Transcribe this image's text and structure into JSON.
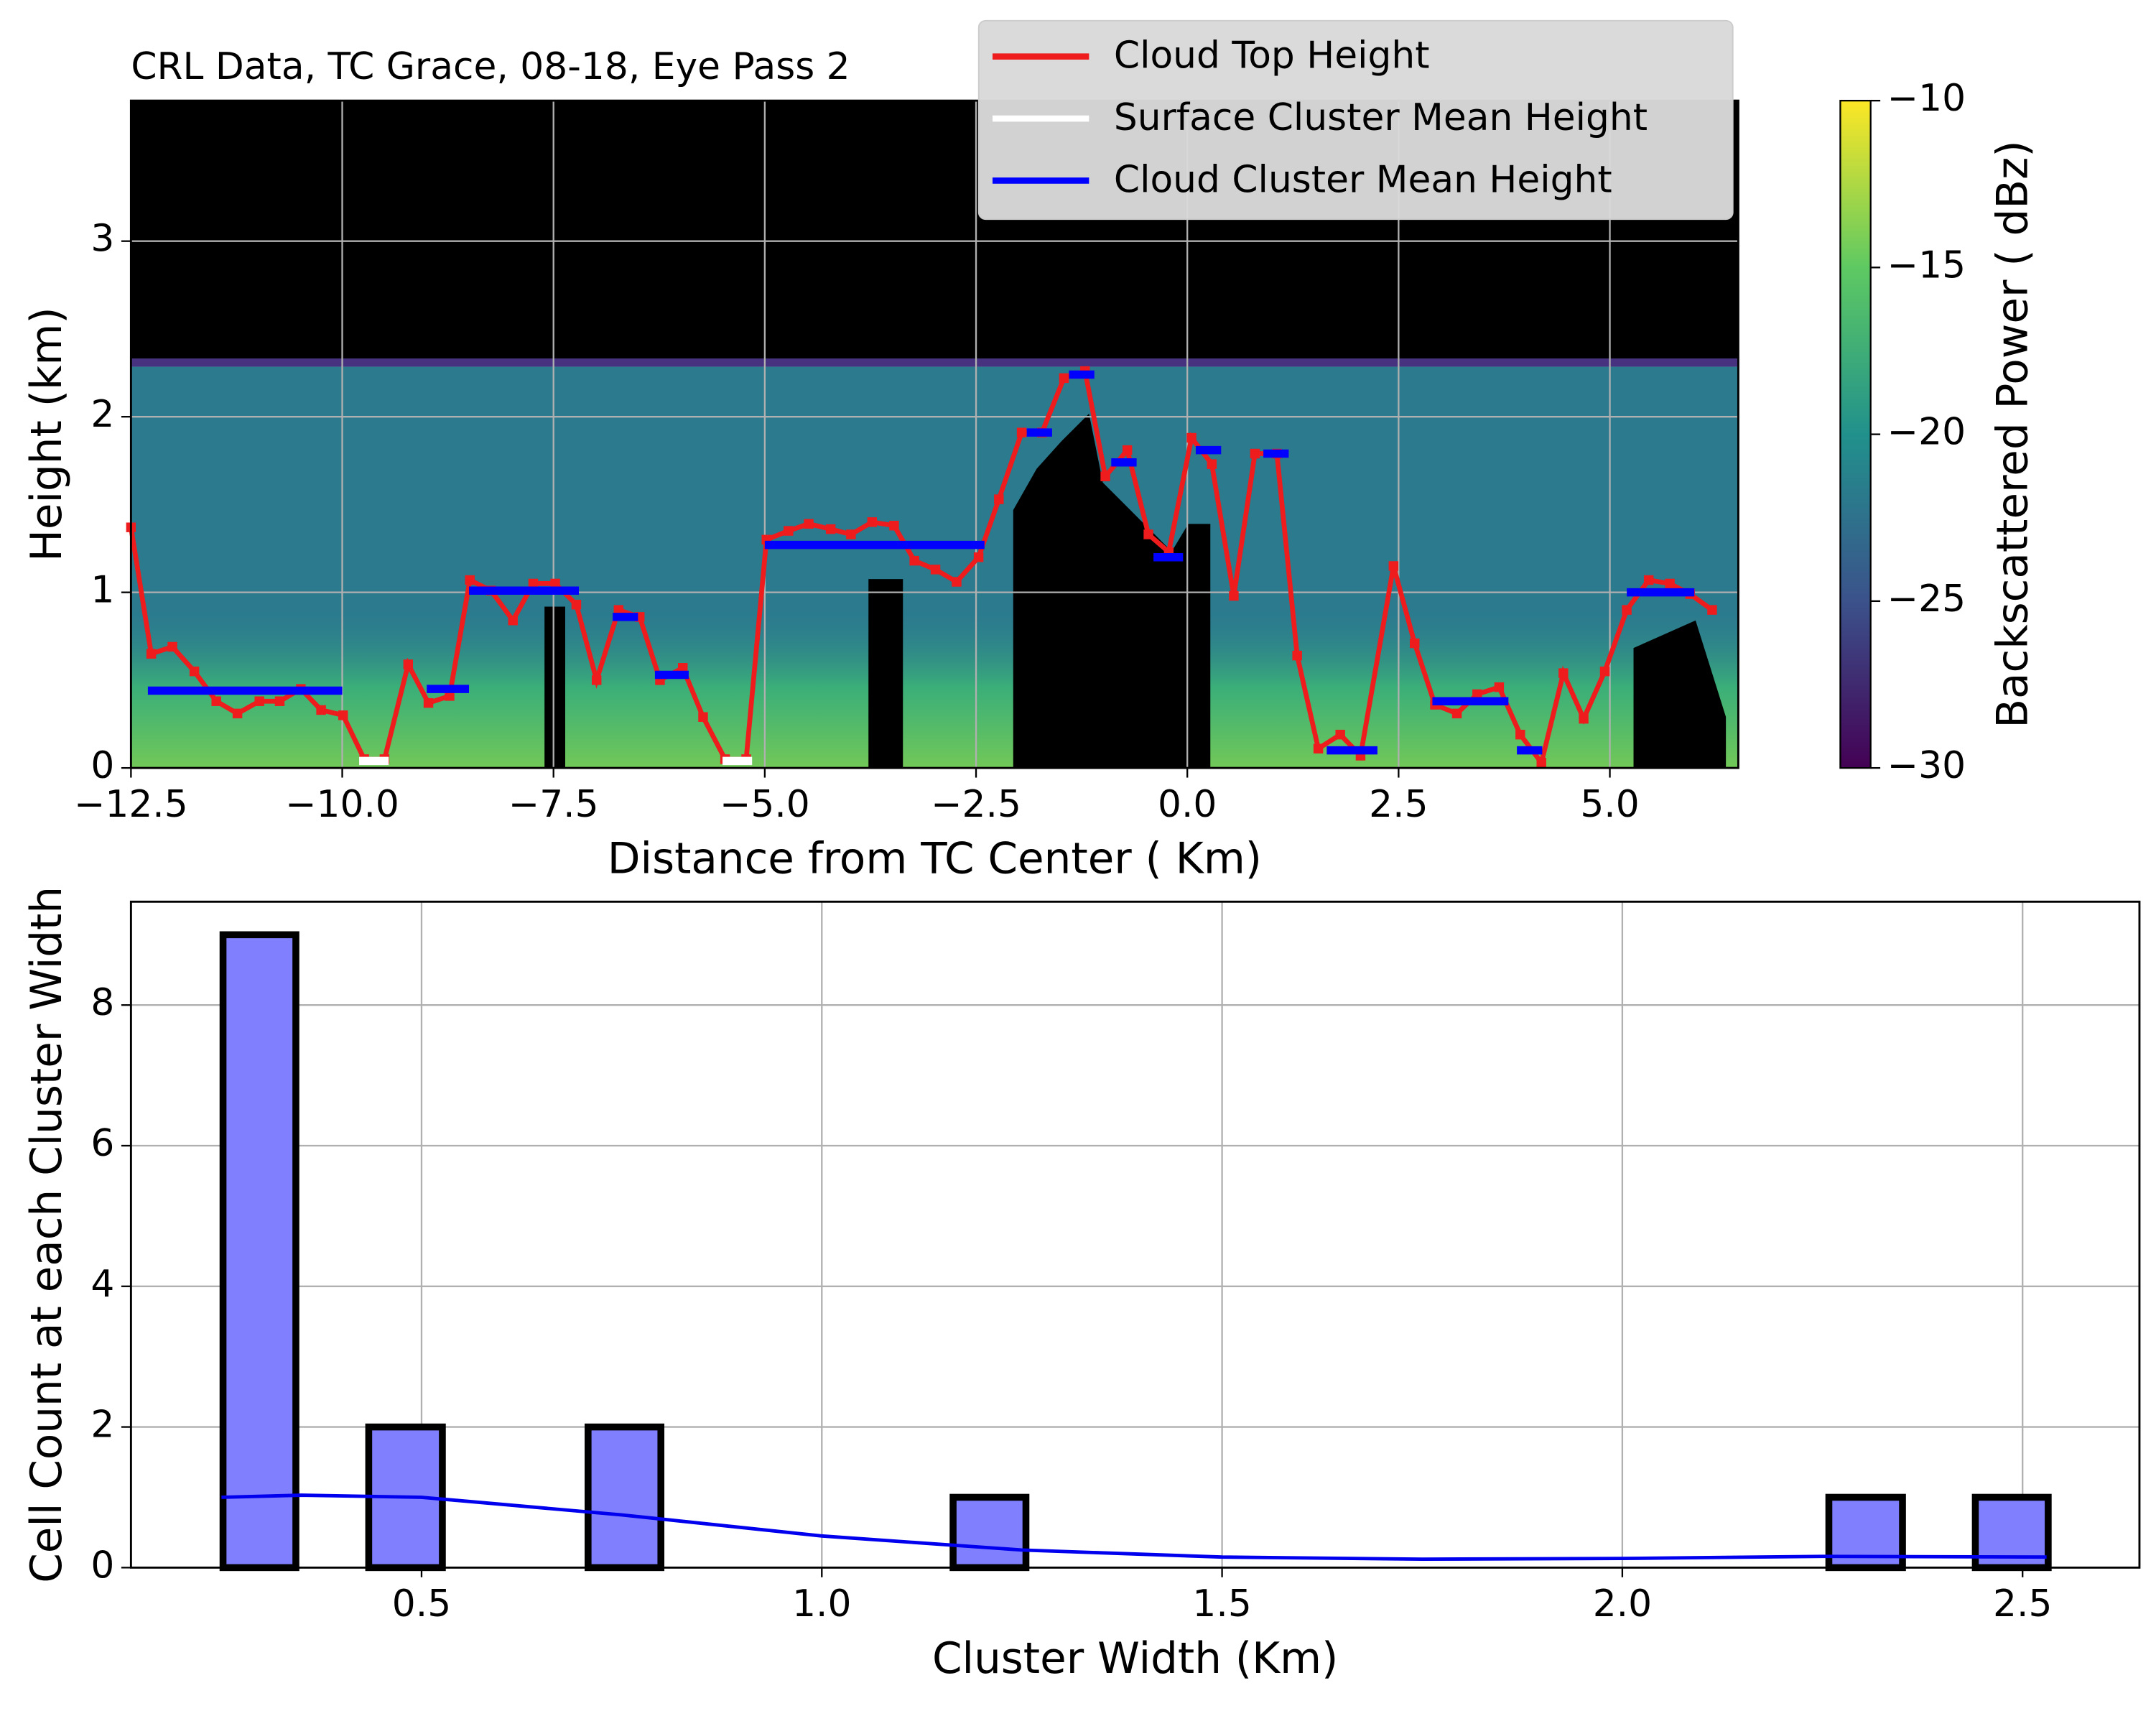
{
  "chart_data": [
    {
      "type": "line",
      "title": "CRL Data, TC Grace, 08-18, Eye Pass 2",
      "xlabel": "Distance from TC Center ( Km)",
      "ylabel": "Height (km)",
      "xlim": [
        -12.5,
        6.52
      ],
      "ylim": [
        0,
        3.8
      ],
      "xticks": [
        {
          "value": -12.5,
          "label": "−12.5"
        },
        {
          "value": -10,
          "label": "−10.0"
        },
        {
          "value": -7.5,
          "label": "−7.5"
        },
        {
          "value": -5,
          "label": "−5.0"
        },
        {
          "value": -2.5,
          "label": "−2.5"
        },
        {
          "value": 0,
          "label": "0.0"
        },
        {
          "value": 2.5,
          "label": "2.5"
        },
        {
          "value": 5,
          "label": "5.0"
        }
      ],
      "yticks": [
        0,
        1,
        2,
        3
      ],
      "grid": true,
      "legend": "upper right",
      "series": [
        {
          "name": "Cloud Top Height",
          "color": "#ee1c1c",
          "x": [
            -12.5,
            -12.26,
            -12.01,
            -11.75,
            -11.49,
            -11.24,
            -10.98,
            -10.74,
            -10.49,
            -10.25,
            -9.99,
            -9.74,
            -9.5,
            -9.22,
            -8.98,
            -8.73,
            -8.49,
            -8.24,
            -7.98,
            -7.74,
            -7.48,
            -7.23,
            -6.99,
            -6.73,
            -6.48,
            -6.24,
            -5.97,
            -5.73,
            -5.47,
            -5.22,
            -4.98,
            -4.72,
            -4.48,
            -4.22,
            -3.98,
            -3.73,
            -3.47,
            -3.23,
            -2.98,
            -2.73,
            -2.47,
            -2.23,
            -1.96,
            -1.72,
            -1.46,
            -1.21,
            -0.97,
            -0.71,
            -0.46,
            -0.22,
            0.05,
            0.29,
            0.55,
            0.8,
            1.06,
            1.3,
            1.55,
            1.81,
            2.05,
            2.44,
            2.69,
            2.93,
            3.19,
            3.43,
            3.69,
            3.94,
            4.19,
            4.45,
            4.69,
            4.94,
            5.2,
            5.46,
            5.71,
            5.95,
            6.21
          ],
          "values": [
            1.37,
            0.65,
            0.69,
            0.55,
            0.38,
            0.31,
            0.38,
            0.38,
            0.45,
            0.33,
            0.3,
            0.05,
            0.05,
            0.59,
            0.37,
            0.41,
            1.07,
            1.01,
            0.84,
            1.05,
            1.05,
            0.93,
            0.5,
            0.9,
            0.86,
            0.5,
            0.57,
            0.29,
            0.05,
            0.05,
            1.3,
            1.35,
            1.39,
            1.36,
            1.33,
            1.4,
            1.38,
            1.18,
            1.13,
            1.06,
            1.2,
            1.53,
            1.91,
            1.91,
            2.22,
            2.26,
            1.66,
            1.81,
            1.33,
            1.23,
            1.88,
            1.73,
            0.98,
            1.79,
            1.79,
            0.64,
            0.11,
            0.19,
            0.07,
            1.15,
            0.71,
            0.36,
            0.31,
            0.42,
            0.46,
            0.19,
            0.03,
            0.54,
            0.28,
            0.55,
            0.9,
            1.07,
            1.05,
            0.99,
            0.9
          ]
        },
        {
          "name": "Surface Cluster Mean Height",
          "color": "#ffffff",
          "x_start": [
            -9.8,
            -5.5
          ],
          "x_end": [
            -9.45,
            -5.15
          ],
          "values": [
            0.04,
            0.04
          ]
        },
        {
          "name": "Cloud Cluster Mean Height",
          "color": "#0000ff",
          "x_start": [
            -12.3,
            -9.0,
            -8.5,
            -6.8,
            -6.3,
            -5.0,
            -1.9,
            -1.4,
            -0.9,
            -0.4,
            0.1,
            0.9,
            1.65,
            2.9,
            3.9,
            5.2
          ],
          "x_end": [
            -10.0,
            -8.5,
            -7.2,
            -6.5,
            -5.9,
            -2.4,
            -1.6,
            -1.1,
            -0.6,
            -0.05,
            0.4,
            1.2,
            2.25,
            3.8,
            4.2,
            6.0
          ],
          "values": [
            0.44,
            0.45,
            1.01,
            0.86,
            0.53,
            1.27,
            1.91,
            2.24,
            1.74,
            1.2,
            1.81,
            1.79,
            0.1,
            0.38,
            0.1,
            1.0
          ]
        }
      ],
      "colorbar": {
        "label": "Backscattered Power ( dBz)",
        "colormap": "viridis",
        "clim": [
          -30,
          -10
        ],
        "ticks": [
          {
            "value": -10,
            "label": "−10"
          },
          {
            "value": -15,
            "label": "−15"
          },
          {
            "value": -20,
            "label": "−20"
          },
          {
            "value": -25,
            "label": "−25"
          },
          {
            "value": -30,
            "label": "−30"
          }
        ]
      }
    },
    {
      "type": "histogram",
      "xlabel": "Cluster Width (Km)",
      "ylabel": "Cell Count at each Cluster Width",
      "xlim": [
        0.137,
        2.646
      ],
      "ylim": [
        0,
        9.47
      ],
      "xticks": [
        0.5,
        {
          "value": 1,
          "label": "1.0"
        },
        1.5,
        {
          "value": 2,
          "label": "2.0"
        },
        2.5
      ],
      "yticks": [
        0,
        2,
        4,
        6,
        8
      ],
      "grid": true,
      "color": "#8080ff",
      "bins": [
        0.252,
        0.343,
        0.434,
        0.526,
        0.617,
        0.708,
        0.799,
        0.89,
        0.982,
        1.073,
        1.164,
        1.255,
        1.346,
        1.438,
        1.529,
        1.62,
        1.711,
        1.802,
        1.894,
        1.985,
        2.076,
        2.167,
        2.258,
        2.35,
        2.441,
        2.532
      ],
      "counts": [
        9,
        0,
        2,
        0,
        0,
        2,
        0,
        0,
        0,
        0,
        1,
        0,
        0,
        0,
        0,
        0,
        0,
        0,
        0,
        0,
        0,
        0,
        1,
        0,
        1
      ],
      "kde": {
        "color": "#0000ee",
        "x": [
          0.25,
          0.35,
          0.5,
          0.75,
          1.0,
          1.25,
          1.5,
          1.75,
          2.0,
          2.25,
          2.53
        ],
        "values": [
          1.0,
          1.03,
          1.0,
          0.75,
          0.45,
          0.25,
          0.15,
          0.12,
          0.13,
          0.16,
          0.15
        ]
      }
    }
  ]
}
